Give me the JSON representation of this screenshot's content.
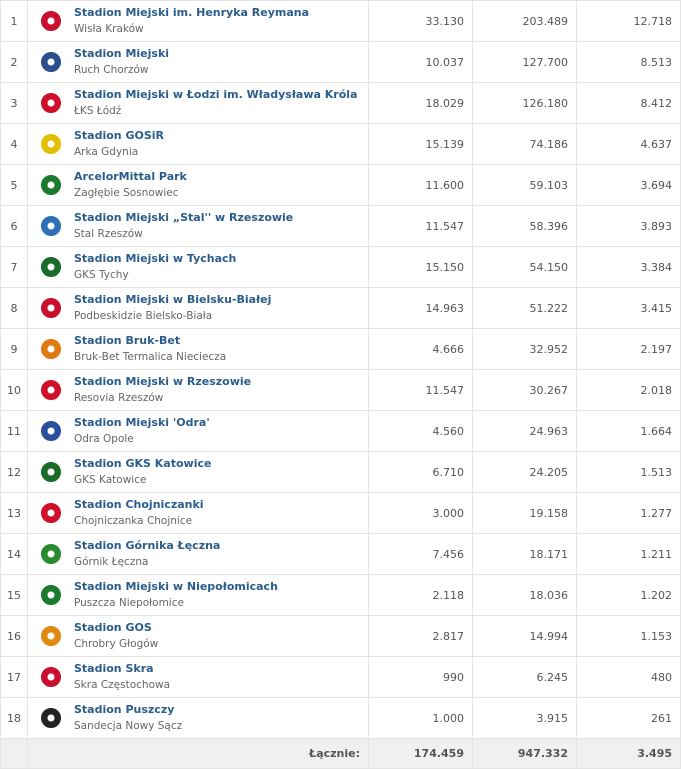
{
  "rows": [
    {
      "rank": "1",
      "stadium": "Stadion Miejski im. Henryka Reymana",
      "club": "Wisła Kraków",
      "capacity": "33.130",
      "attendance": "203.489",
      "average": "12.718",
      "color": "#c8102e"
    },
    {
      "rank": "2",
      "stadium": "Stadion Miejski",
      "club": "Ruch Chorzów",
      "capacity": "10.037",
      "attendance": "127.700",
      "average": "8.513",
      "color": "#2b4f8c"
    },
    {
      "rank": "3",
      "stadium": "Stadion Miejski w Łodzi im. Władysława Króla",
      "club": "ŁKS Łódź",
      "capacity": "18.029",
      "attendance": "126.180",
      "average": "8.412",
      "color": "#d0102a"
    },
    {
      "rank": "4",
      "stadium": "Stadion GOSiR",
      "club": "Arka Gdynia",
      "capacity": "15.139",
      "attendance": "74.186",
      "average": "4.637",
      "color": "#e2c000"
    },
    {
      "rank": "5",
      "stadium": "ArcelorMittal Park",
      "club": "Zagłębie Sosnowiec",
      "capacity": "11.600",
      "attendance": "59.103",
      "average": "3.694",
      "color": "#1a7a2e"
    },
    {
      "rank": "6",
      "stadium": "Stadion Miejski „Stal'' w Rzeszowie",
      "club": "Stal Rzeszów",
      "capacity": "11.547",
      "attendance": "58.396",
      "average": "3.893",
      "color": "#2e6fb5"
    },
    {
      "rank": "7",
      "stadium": "Stadion Miejski w Tychach",
      "club": "GKS Tychy",
      "capacity": "15.150",
      "attendance": "54.150",
      "average": "3.384",
      "color": "#1a6b2a"
    },
    {
      "rank": "8",
      "stadium": "Stadion Miejski w Bielsku-Białej",
      "club": "Podbeskidzie Bielsko-Biała",
      "capacity": "14.963",
      "attendance": "51.222",
      "average": "3.415",
      "color": "#c8102e"
    },
    {
      "rank": "9",
      "stadium": "Stadion Bruk-Bet",
      "club": "Bruk-Bet Termalica Nieciecza",
      "capacity": "4.666",
      "attendance": "32.952",
      "average": "2.197",
      "color": "#e07a10"
    },
    {
      "rank": "10",
      "stadium": "Stadion Miejski w Rzeszowie",
      "club": "Resovia Rzeszów",
      "capacity": "11.547",
      "attendance": "30.267",
      "average": "2.018",
      "color": "#d0102a"
    },
    {
      "rank": "11",
      "stadium": "Stadion Miejski 'Odra'",
      "club": "Odra Opole",
      "capacity": "4.560",
      "attendance": "24.963",
      "average": "1.664",
      "color": "#2a4f9c"
    },
    {
      "rank": "12",
      "stadium": "Stadion GKS Katowice",
      "club": "GKS Katowice",
      "capacity": "6.710",
      "attendance": "24.205",
      "average": "1.513",
      "color": "#1a6b2a"
    },
    {
      "rank": "13",
      "stadium": "Stadion Chojniczanki",
      "club": "Chojniczanka Chojnice",
      "capacity": "3.000",
      "attendance": "19.158",
      "average": "1.277",
      "color": "#d0102a"
    },
    {
      "rank": "14",
      "stadium": "Stadion Górnika Łęczna",
      "club": "Górnik Łęczna",
      "capacity": "7.456",
      "attendance": "18.171",
      "average": "1.211",
      "color": "#2a8a2e"
    },
    {
      "rank": "15",
      "stadium": "Stadion Miejski w Niepołomicach",
      "club": "Puszcza Niepołomice",
      "capacity": "2.118",
      "attendance": "18.036",
      "average": "1.202",
      "color": "#1a7a2e"
    },
    {
      "rank": "16",
      "stadium": "Stadion GOS",
      "club": "Chrobry Głogów",
      "capacity": "2.817",
      "attendance": "14.994",
      "average": "1.153",
      "color": "#e08a10"
    },
    {
      "rank": "17",
      "stadium": "Stadion Skra",
      "club": "Skra Częstochowa",
      "capacity": "990",
      "attendance": "6.245",
      "average": "480",
      "color": "#c8102e"
    },
    {
      "rank": "18",
      "stadium": "Stadion Puszczy",
      "club": "Sandecja Nowy Sącz",
      "capacity": "1.000",
      "attendance": "3.915",
      "average": "261",
      "color": "#222222"
    }
  ],
  "total": {
    "label": "Łącznie:",
    "capacity": "174.459",
    "attendance": "947.332",
    "average": "3.495"
  }
}
